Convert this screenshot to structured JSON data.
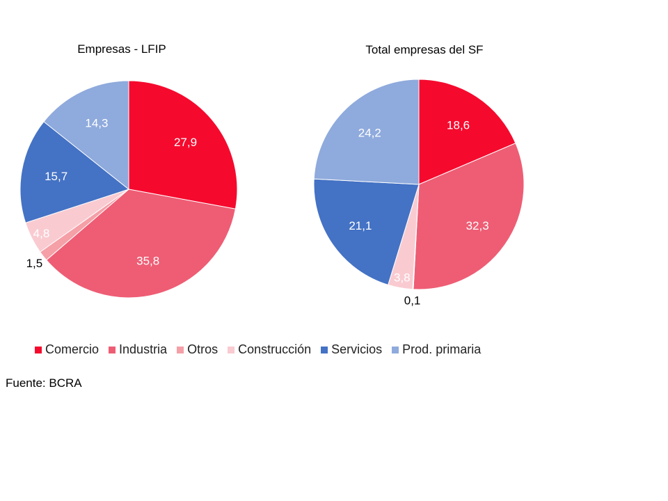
{
  "chart_data": [
    {
      "type": "pie",
      "title": "Empresas  - LFIP",
      "categories": [
        "Comercio",
        "Industria",
        "Otros",
        "Construcción",
        "Servicios",
        "Prod. primaria"
      ],
      "values": [
        27.9,
        35.8,
        1.5,
        4.8,
        15.7,
        14.3
      ],
      "labels": [
        "27,9",
        "35,8",
        "1,5",
        "4,8",
        "15,7",
        "14,3"
      ]
    },
    {
      "type": "pie",
      "title": "Total empresas del SF",
      "categories": [
        "Comercio",
        "Industria",
        "Otros",
        "Construcción",
        "Servicios",
        "Prod. primaria"
      ],
      "values": [
        18.6,
        32.3,
        0.1,
        3.8,
        21.1,
        24.2
      ],
      "labels": [
        "18,6",
        "32,3",
        "0,1",
        "3,8",
        "21,1",
        "24,2"
      ]
    }
  ],
  "legend": {
    "position": "bottom",
    "items": [
      {
        "label": "Comercio",
        "color": "#F50A2E"
      },
      {
        "label": "Industria",
        "color": "#EE5D74"
      },
      {
        "label": "Otros",
        "color": "#F59FA7"
      },
      {
        "label": "Construcción",
        "color": "#F9CBD1"
      },
      {
        "label": "Servicios",
        "color": "#4472C4"
      },
      {
        "label": "Prod. primaria",
        "color": "#8FAADC"
      }
    ]
  },
  "source": "Fuente: BCRA"
}
